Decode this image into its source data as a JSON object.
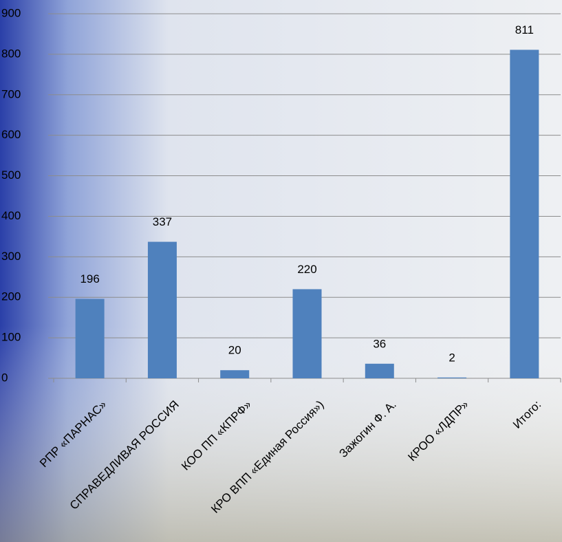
{
  "chart_data": {
    "type": "bar",
    "categories": [
      "РПР «ПАРНАС»",
      "СПРАВЕДЛИВАЯ РОССИЯ",
      "КОО ПП «КПРФ»",
      "КРО ВПП «Единая Россия»)",
      "Зажогин Ф. А.",
      "КРОО «ЛДПР»",
      "Итого:"
    ],
    "values": [
      196,
      337,
      20,
      220,
      36,
      2,
      811
    ],
    "color": "#4f81bd",
    "ylim": [
      0,
      900
    ],
    "yticks": [
      0,
      100,
      200,
      300,
      400,
      500,
      600,
      700,
      800,
      900
    ],
    "grid": true
  }
}
